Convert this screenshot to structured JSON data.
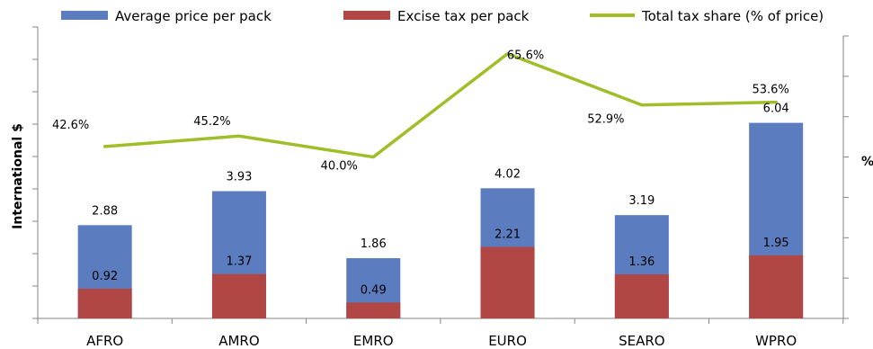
{
  "chart_data": {
    "type": "bar",
    "stacked": true,
    "categories": [
      "AFRO",
      "AMRO",
      "EMRO",
      "EURO",
      "SEARO",
      "WPRO"
    ],
    "series": [
      {
        "name": "Average price per pack",
        "kind": "bar",
        "axis": "left",
        "color": "#5b7dbf",
        "values": [
          2.88,
          3.93,
          1.86,
          4.02,
          3.19,
          6.04
        ],
        "labels": [
          "2.88",
          "3.93",
          "1.86",
          "4.02",
          "3.19",
          "6.04"
        ]
      },
      {
        "name": "Excise tax per pack",
        "kind": "bar",
        "axis": "left",
        "color": "#b04745",
        "values": [
          0.92,
          1.37,
          0.49,
          2.21,
          1.36,
          1.95
        ],
        "labels": [
          "0.92",
          "1.37",
          "0.49",
          "2.21",
          "1.36",
          "1.95"
        ]
      },
      {
        "name": "Total tax share (% of price)",
        "kind": "line",
        "axis": "right",
        "color": "#9fbe2a",
        "values": [
          42.6,
          45.2,
          40.0,
          65.6,
          52.9,
          53.6
        ],
        "labels": [
          "42.6%",
          "45.2%",
          "40.0%",
          "65.6%",
          "52.9%",
          "53.6%"
        ]
      }
    ],
    "ylabel": "International $",
    "y2label": "%",
    "ylim": [
      0,
      9
    ],
    "y2lim": [
      0,
      70
    ],
    "y_tick_count": 10,
    "y2_tick_count": 8,
    "grid": false,
    "legend": "top"
  }
}
